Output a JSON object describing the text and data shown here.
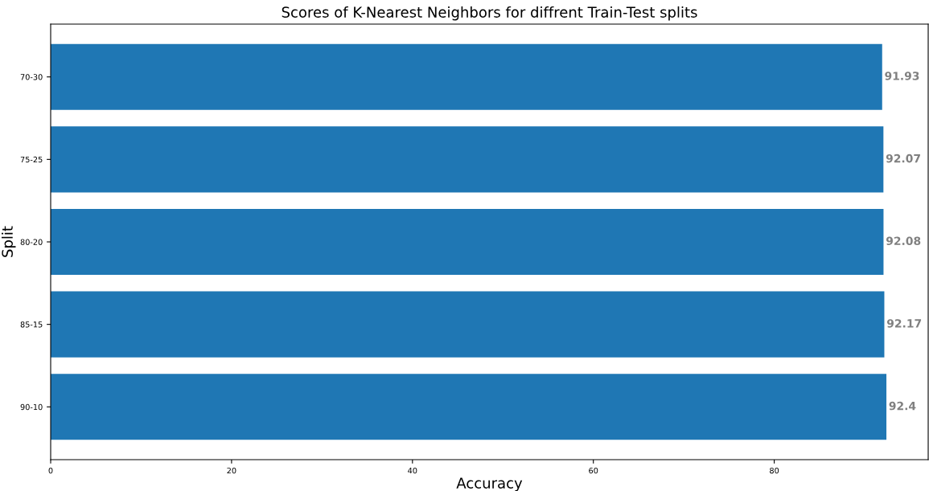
{
  "chart_data": {
    "type": "bar",
    "orientation": "horizontal",
    "title": "Scores of K-Nearest Neighbors for diffrent Train-Test splits",
    "xlabel": "Accuracy",
    "ylabel": "Split",
    "categories": [
      "70-30",
      "75-25",
      "80-20",
      "85-15",
      "90-10"
    ],
    "values": [
      91.93,
      92.07,
      92.08,
      92.17,
      92.4
    ],
    "color": "#1f77b4",
    "data_labels": true,
    "xlim": [
      0,
      97.02
    ],
    "xticks": [
      0,
      20,
      40,
      60,
      80
    ],
    "grid": false
  }
}
